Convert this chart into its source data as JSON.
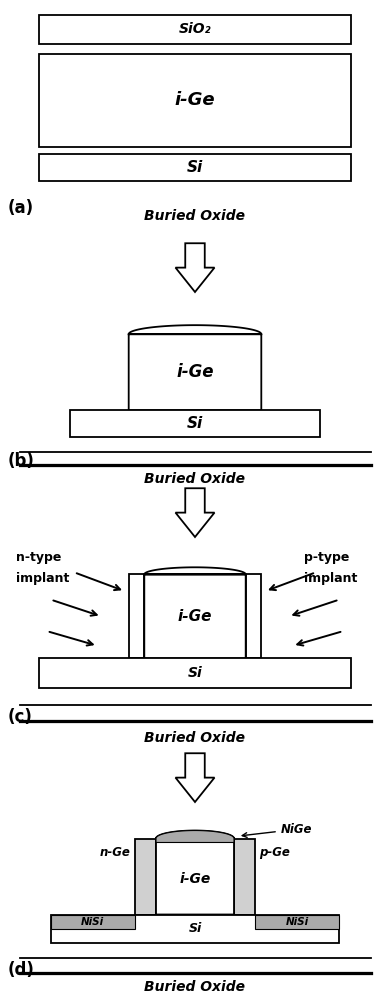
{
  "bg_color": "#ffffff",
  "line_color": "#000000",
  "panel_labels": [
    "(a)",
    "(b)",
    "(c)",
    "(d)"
  ],
  "buried_oxide_text": "Buried Oxide",
  "sio2_text": "SiO₂",
  "ige_text": "i-Ge",
  "si_text": "Si",
  "nge_text": "n-Ge",
  "pge_text": "p-Ge",
  "nige_text": "NiGe",
  "nisi_text": "NiSi",
  "ntype_line1": "n-type",
  "ntype_line2": "implant",
  "ptype_line1": "p-type",
  "ptype_line2": "implant"
}
